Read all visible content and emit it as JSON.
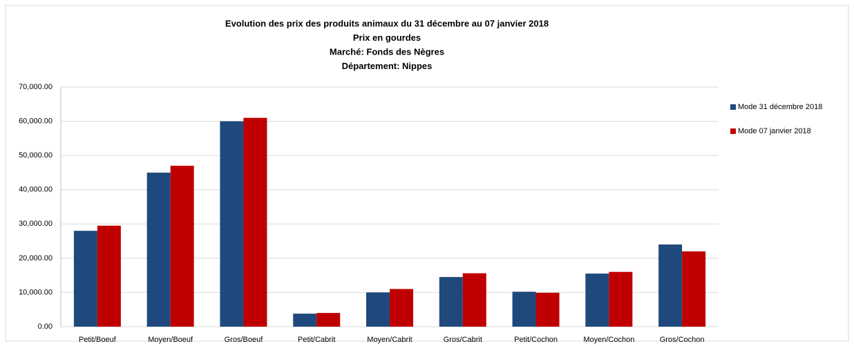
{
  "chart_data": {
    "type": "bar",
    "title": [
      "Evolution des prix des produits animaux du 31 décembre  au 07 janvier  2018",
      "Prix en gourdes",
      "Marché: Fonds des Nègres",
      "Département: Nippes"
    ],
    "categories": [
      "Petit/Boeuf",
      "Moyen/Boeuf",
      "Gros/Boeuf",
      "Petit/Cabrit",
      "Moyen/Cabrit",
      "Gros/Cabrit",
      "Petit/Cochon",
      "Moyen/Cochon",
      "Gros/Cochon"
    ],
    "series": [
      {
        "name": "Mode 31 décembre 2018",
        "color": "#1f497d",
        "values": [
          28000,
          45000,
          60000,
          3800,
          10000,
          14500,
          10200,
          15500,
          24000
        ]
      },
      {
        "name": "Mode 07 janvier 2018",
        "color": "#c00000",
        "values": [
          29500,
          47000,
          61000,
          4000,
          11000,
          15600,
          9900,
          16000,
          22000
        ]
      }
    ],
    "ylim": [
      0,
      70000
    ],
    "yticks": [
      {
        "value": 0,
        "label": "0.00"
      },
      {
        "value": 10000,
        "label": "10,000.00"
      },
      {
        "value": 20000,
        "label": "20,000.00"
      },
      {
        "value": 30000,
        "label": "30,000.00"
      },
      {
        "value": 40000,
        "label": "40,000.00"
      },
      {
        "value": 50000,
        "label": "50,000.00"
      },
      {
        "value": 60000,
        "label": "60,000.00"
      },
      {
        "value": 70000,
        "label": "70,000.00"
      }
    ],
    "grid": true,
    "legend": "right"
  }
}
